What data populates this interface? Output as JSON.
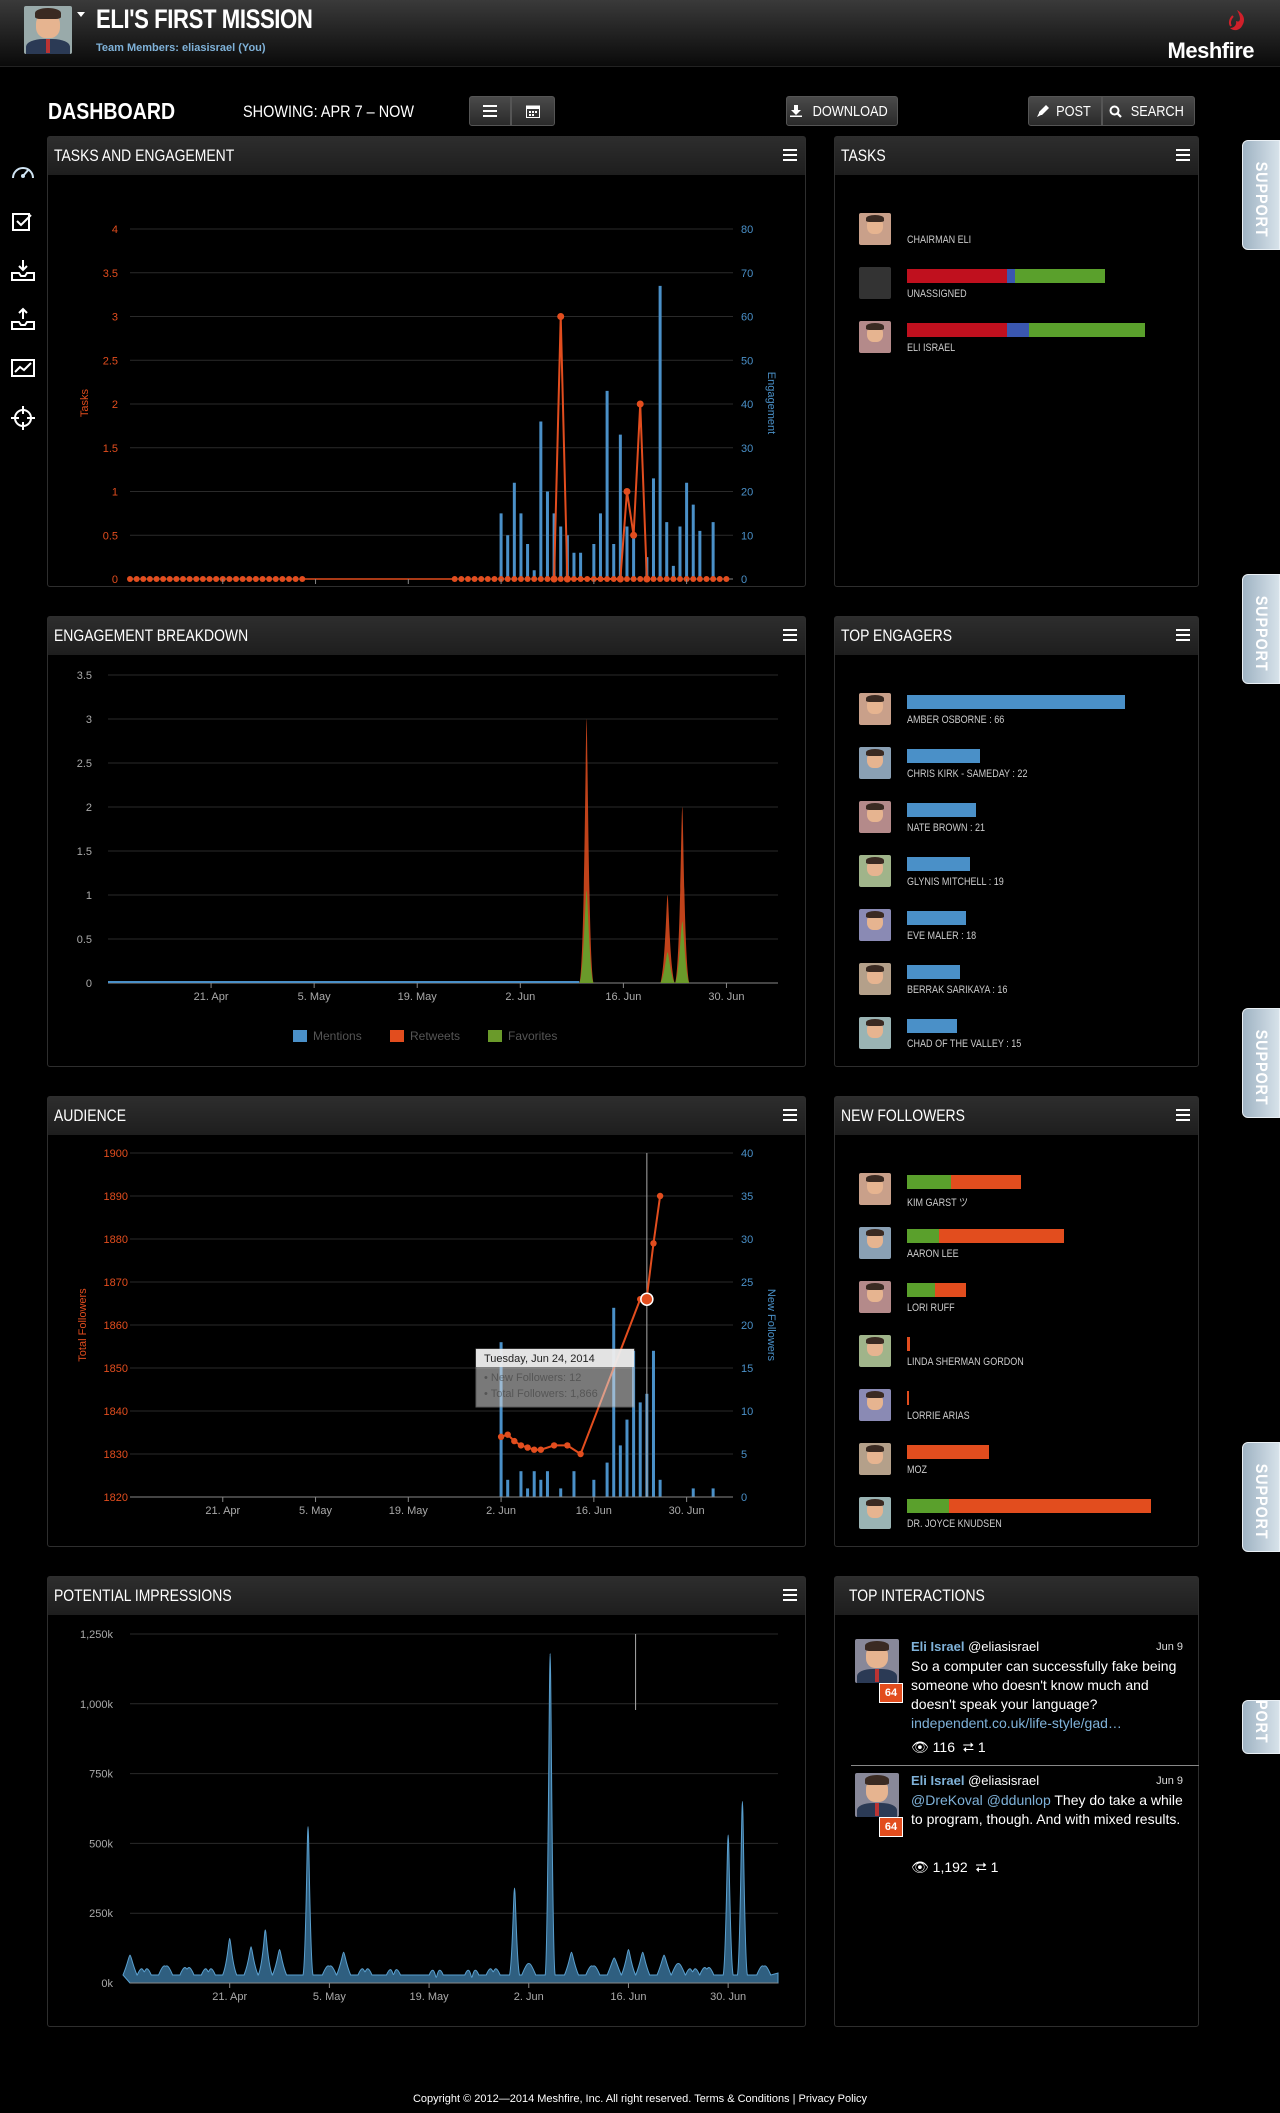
{
  "header": {
    "title": "ELI'S FIRST MISSION",
    "team_label": "Team Members: eliasisrael (You)",
    "logo": "Meshfire",
    "icons": {
      "logo": "meshfire-logo-icon",
      "avatar": "user-avatar"
    }
  },
  "toolbar": {
    "dashboard": "DASHBOARD",
    "showing": "SHOWING: APR 7 – NOW",
    "download": "DOWNLOAD",
    "post": "POST",
    "search": "SEARCH"
  },
  "support_label": "SUPPORT",
  "panels": {
    "tasks_engagement": "TASKS AND ENGAGEMENT",
    "tasks": "TASKS",
    "engagement_breakdown": "ENGAGEMENT BREAKDOWN",
    "top_engagers": "TOP ENGAGERS",
    "audience": "AUDIENCE",
    "new_followers": "NEW FOLLOWERS",
    "potential_impressions": "POTENTIAL IMPRESSIONS",
    "top_interactions": "TOP INTERACTIONS"
  },
  "chart_data": [
    {
      "id": "tasks_engagement",
      "type": "bar+line",
      "x_ticks": [
        "21. Apr",
        "5. May",
        "19. May",
        "2. Jun",
        "16. Jun",
        "30. Jun"
      ],
      "ylabel_left": "Tasks",
      "ylabel_right": "Engagement",
      "yticks_left": [
        "0",
        "0.5",
        "1",
        "1.5",
        "2",
        "2.5",
        "3",
        "3.5",
        "4"
      ],
      "yticks_right": [
        "0",
        "10",
        "20",
        "30",
        "40",
        "50",
        "60",
        "70",
        "80"
      ],
      "ylim_left": [
        0,
        4
      ],
      "ylim_right": [
        0,
        80
      ],
      "day_range": [
        "2014-04-07",
        "2014-07-07"
      ],
      "engagement_bars": [
        [
          "2014-06-02",
          15
        ],
        [
          "2014-06-03",
          10
        ],
        [
          "2014-06-04",
          22
        ],
        [
          "2014-06-05",
          15
        ],
        [
          "2014-06-06",
          8
        ],
        [
          "2014-06-07",
          2
        ],
        [
          "2014-06-08",
          36
        ],
        [
          "2014-06-09",
          20
        ],
        [
          "2014-06-10",
          15
        ],
        [
          "2014-06-11",
          12
        ],
        [
          "2014-06-12",
          10
        ],
        [
          "2014-06-13",
          6
        ],
        [
          "2014-06-14",
          6
        ],
        [
          "2014-06-16",
          8
        ],
        [
          "2014-06-17",
          15
        ],
        [
          "2014-06-18",
          43
        ],
        [
          "2014-06-19",
          8
        ],
        [
          "2014-06-20",
          33
        ],
        [
          "2014-06-21",
          12
        ],
        [
          "2014-06-22",
          10
        ],
        [
          "2014-06-24",
          5
        ],
        [
          "2014-06-25",
          23
        ],
        [
          "2014-06-26",
          67
        ],
        [
          "2014-06-27",
          13
        ],
        [
          "2014-06-28",
          3
        ],
        [
          "2014-06-29",
          12
        ],
        [
          "2014-06-30",
          22
        ],
        [
          "2014-07-01",
          17
        ],
        [
          "2014-07-02",
          11
        ],
        [
          "2014-07-04",
          13
        ]
      ],
      "tasks_line": [
        [
          "2014-06-10",
          0
        ],
        [
          "2014-06-11",
          3
        ],
        [
          "2014-06-12",
          0
        ],
        [
          "2014-06-20",
          0
        ],
        [
          "2014-06-21",
          1
        ],
        [
          "2014-06-22",
          0.5
        ],
        [
          "2014-06-23",
          2
        ],
        [
          "2014-06-24",
          0
        ]
      ],
      "tasks_zero_segments": [
        [
          "2014-04-07",
          "2014-05-03"
        ],
        [
          "2014-05-26",
          "2014-07-06"
        ]
      ]
    },
    {
      "id": "engagement_breakdown",
      "type": "area",
      "x_ticks": [
        "21. Apr",
        "5. May",
        "19. May",
        "2. Jun",
        "16. Jun",
        "30. Jun"
      ],
      "yticks": [
        "0",
        "0.5",
        "1",
        "1.5",
        "2",
        "2.5",
        "3",
        "3.5"
      ],
      "ylim": [
        0,
        3.5
      ],
      "legend": [
        "Mentions",
        "Retweets",
        "Favorites"
      ],
      "series_colors": [
        "#4a90c8",
        "#e24d1e",
        "#6a9a2a"
      ],
      "peaks": [
        {
          "date": "2014-06-11",
          "value": 3
        },
        {
          "date": "2014-06-22",
          "value": 1
        },
        {
          "date": "2014-06-24",
          "value": 2
        }
      ]
    },
    {
      "id": "audience",
      "type": "bar+line",
      "x_ticks": [
        "21. Apr",
        "5. May",
        "19. May",
        "2. Jun",
        "16. Jun",
        "30. Jun"
      ],
      "ylabel_left": "Total Followers",
      "ylabel_right": "New Followers",
      "yticks_left": [
        "1820",
        "1830",
        "1840",
        "1850",
        "1860",
        "1870",
        "1880",
        "1890",
        "1900"
      ],
      "yticks_right": [
        "0",
        "5",
        "10",
        "15",
        "20",
        "25",
        "30",
        "35",
        "40"
      ],
      "ylim_left": [
        1820,
        1900
      ],
      "ylim_right": [
        0,
        40
      ],
      "new_followers_bars": [
        [
          "2014-06-02",
          18
        ],
        [
          "2014-06-03",
          2
        ],
        [
          "2014-06-05",
          3
        ],
        [
          "2014-06-06",
          1
        ],
        [
          "2014-06-07",
          3
        ],
        [
          "2014-06-08",
          2
        ],
        [
          "2014-06-09",
          3
        ],
        [
          "2014-06-11",
          1
        ],
        [
          "2014-06-13",
          3
        ],
        [
          "2014-06-16",
          2
        ],
        [
          "2014-06-18",
          4
        ],
        [
          "2014-06-19",
          22
        ],
        [
          "2014-06-20",
          6
        ],
        [
          "2014-06-21",
          9
        ],
        [
          "2014-06-22",
          17
        ],
        [
          "2014-06-23",
          11
        ],
        [
          "2014-06-24",
          12
        ],
        [
          "2014-06-25",
          17
        ],
        [
          "2014-06-26",
          2
        ],
        [
          "2014-07-01",
          1
        ],
        [
          "2014-07-04",
          1
        ]
      ],
      "total_followers_line": [
        [
          "2014-06-02",
          1834
        ],
        [
          "2014-06-03",
          1834.5
        ],
        [
          "2014-06-04",
          1833
        ],
        [
          "2014-06-05",
          1832
        ],
        [
          "2014-06-06",
          1831.5
        ],
        [
          "2014-06-07",
          1831
        ],
        [
          "2014-06-08",
          1831
        ],
        [
          "2014-06-10",
          1832
        ],
        [
          "2014-06-12",
          1832
        ],
        [
          "2014-06-14",
          1830
        ],
        [
          "2014-06-23",
          1866
        ],
        [
          "2014-06-24",
          1866.5
        ],
        [
          "2014-06-25",
          1879
        ],
        [
          "2014-06-26",
          1890
        ]
      ],
      "tooltip": {
        "date": "Tuesday, Jun 24, 2014",
        "new_followers": "• New Followers: 12",
        "total_followers": "• Total Followers: 1,866"
      }
    },
    {
      "id": "potential_impressions",
      "type": "area",
      "x_ticks": [
        "21. Apr",
        "5. May",
        "19. May",
        "2. Jun",
        "16. Jun",
        "30. Jun"
      ],
      "yticks": [
        "0k",
        "250k",
        "500k",
        "750k",
        "1,000k",
        "1,250k"
      ],
      "ylim": [
        0,
        1250
      ],
      "series_color": "#3a7ca5",
      "peaks": [
        {
          "date": "2014-04-07",
          "value": 100
        },
        {
          "date": "2014-04-09",
          "value": 40
        },
        {
          "date": "2014-04-12",
          "value": 60
        },
        {
          "date": "2014-04-15",
          "value": 50
        },
        {
          "date": "2014-04-18",
          "value": 40
        },
        {
          "date": "2014-04-21",
          "value": 160
        },
        {
          "date": "2014-04-24",
          "value": 130
        },
        {
          "date": "2014-04-26",
          "value": 190
        },
        {
          "date": "2014-04-28",
          "value": 120
        },
        {
          "date": "2014-05-02",
          "value": 560
        },
        {
          "date": "2014-05-05",
          "value": 60
        },
        {
          "date": "2014-05-07",
          "value": 110
        },
        {
          "date": "2014-05-10",
          "value": 40
        },
        {
          "date": "2014-05-14",
          "value": 30
        },
        {
          "date": "2014-05-20",
          "value": 20
        },
        {
          "date": "2014-05-25",
          "value": 20
        },
        {
          "date": "2014-05-28",
          "value": 40
        },
        {
          "date": "2014-05-31",
          "value": 340
        },
        {
          "date": "2014-06-02",
          "value": 70
        },
        {
          "date": "2014-06-05",
          "value": 1180
        },
        {
          "date": "2014-06-08",
          "value": 110
        },
        {
          "date": "2014-06-11",
          "value": 60
        },
        {
          "date": "2014-06-14",
          "value": 90
        },
        {
          "date": "2014-06-16",
          "value": 120
        },
        {
          "date": "2014-06-18",
          "value": 110
        },
        {
          "date": "2014-06-21",
          "value": 100
        },
        {
          "date": "2014-06-23",
          "value": 70
        },
        {
          "date": "2014-06-25",
          "value": 40
        },
        {
          "date": "2014-06-27",
          "value": 50
        },
        {
          "date": "2014-06-30",
          "value": 530
        },
        {
          "date": "2014-07-02",
          "value": 650
        },
        {
          "date": "2014-07-05",
          "value": 60
        }
      ]
    }
  ],
  "tasks_list": [
    {
      "name": "CHAIRMAN ELI",
      "segments": []
    },
    {
      "name": "UNASSIGNED",
      "segments": [
        {
          "color": "#c0101e",
          "value": 100
        },
        {
          "color": "#3a57b0",
          "value": 8
        },
        {
          "color": "#5aa02c",
          "value": 90
        }
      ]
    },
    {
      "name": "ELI ISRAEL",
      "segments": [
        {
          "color": "#c0101e",
          "value": 100
        },
        {
          "color": "#3a57b0",
          "value": 22
        },
        {
          "color": "#5aa02c",
          "value": 116
        }
      ]
    }
  ],
  "top_engagers": [
    {
      "label": "AMBER OSBORNE : 66",
      "value": 66
    },
    {
      "label": "CHRIS KIRK - SAMEDAY : 22",
      "value": 22
    },
    {
      "label": "NATE BROWN : 21",
      "value": 21
    },
    {
      "label": "GLYNIS MITCHELL : 19",
      "value": 19
    },
    {
      "label": "EVE MALER : 18",
      "value": 18
    },
    {
      "label": "BERRAK SARIKAYA : 16",
      "value": 16
    },
    {
      "label": "CHAD OF THE VALLEY : 15",
      "value": 15
    }
  ],
  "new_followers": [
    {
      "name": "KIM GARST ツ",
      "segments": [
        {
          "color": "#5aa02c",
          "value": 44
        },
        {
          "color": "#e24d1e",
          "value": 70
        }
      ]
    },
    {
      "name": "AARON LEE",
      "segments": [
        {
          "color": "#5aa02c",
          "value": 32
        },
        {
          "color": "#e24d1e",
          "value": 125
        }
      ]
    },
    {
      "name": "LORI RUFF",
      "segments": [
        {
          "color": "#5aa02c",
          "value": 28
        },
        {
          "color": "#e24d1e",
          "value": 31
        }
      ]
    },
    {
      "name": "LINDA SHERMAN GORDON",
      "segments": [
        {
          "color": "#e24d1e",
          "value": 3
        }
      ]
    },
    {
      "name": "LORRIE ARIAS",
      "segments": [
        {
          "color": "#e24d1e",
          "value": 2
        }
      ]
    },
    {
      "name": "MOZ",
      "segments": [
        {
          "color": "#e24d1e",
          "value": 82
        }
      ]
    },
    {
      "name": "DR. JOYCE KNUDSEN",
      "segments": [
        {
          "color": "#5aa02c",
          "value": 42
        },
        {
          "color": "#e24d1e",
          "value": 202
        }
      ]
    }
  ],
  "top_interactions": [
    {
      "name": "Eli Israel",
      "handle": "@eliasisrael",
      "date": "Jun 9",
      "badge": "64",
      "text": "So a computer can successfully fake being someone who doesn't know much and doesn't speak your language?",
      "link": "independent.co.uk/life-style/gad…",
      "views": "116",
      "retweets": "1"
    },
    {
      "name": "Eli Israel",
      "handle": "@eliasisrael",
      "date": "Jun 9",
      "badge": "64",
      "mention1": "@DreKoval",
      "mention2": "@ddunlop",
      "text": " They do take a while to program, though. And with mixed results.",
      "views": "1,192",
      "retweets": "1"
    }
  ],
  "footer": {
    "copyright": "Copyright © 2012—2014 Meshfire, Inc. All right reserved.",
    "terms": "Terms & Conditions",
    "sep": "|",
    "privacy": "Privacy Policy"
  }
}
